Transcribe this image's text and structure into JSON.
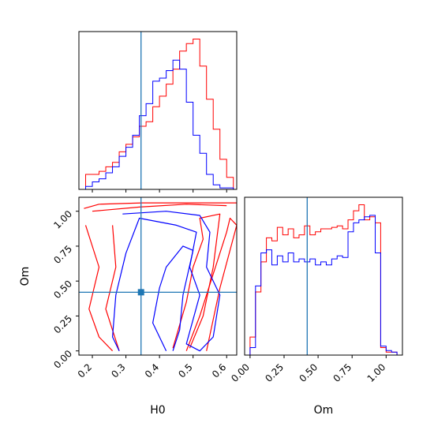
{
  "colors": {
    "series_red": "#ff0000",
    "series_blue": "#0000ff",
    "truth_line": "#1f77b4",
    "frame": "#000000",
    "background": "#ffffff"
  },
  "chart_data": [
    {
      "type": "histogram",
      "panel": "H0-marginal",
      "xlim": [
        0.16,
        0.63
      ],
      "ylim": [
        0,
        1.05
      ],
      "bin_edges": [
        0.18,
        0.2,
        0.22,
        0.24,
        0.26,
        0.28,
        0.3,
        0.32,
        0.34,
        0.36,
        0.38,
        0.4,
        0.42,
        0.44,
        0.46,
        0.48,
        0.5,
        0.52,
        0.54,
        0.56,
        0.58,
        0.6,
        0.62
      ],
      "series": [
        {
          "color": "red",
          "values": [
            0.1,
            0.1,
            0.12,
            0.15,
            0.18,
            0.25,
            0.3,
            0.35,
            0.42,
            0.45,
            0.55,
            0.62,
            0.7,
            0.8,
            0.92,
            0.97,
            1.0,
            0.82,
            0.6,
            0.4,
            0.2,
            0.08
          ]
        },
        {
          "color": "blue",
          "values": [
            0.02,
            0.05,
            0.07,
            0.11,
            0.15,
            0.22,
            0.28,
            0.36,
            0.49,
            0.57,
            0.72,
            0.74,
            0.79,
            0.86,
            0.8,
            0.58,
            0.36,
            0.24,
            0.1,
            0.03,
            0.01,
            0.01
          ]
        }
      ],
      "truth_x": 0.345
    },
    {
      "type": "contour",
      "panel": "H0-vs-Om",
      "xlabel": "H0",
      "ylabel": "Om",
      "xlim": [
        0.16,
        0.63
      ],
      "ylim": [
        -0.03,
        1.1
      ],
      "xticks": [
        "0.2",
        "0.3",
        "0.4",
        "0.5",
        "0.6"
      ],
      "yticks": [
        "0.00",
        "0.25",
        "0.50",
        "0.75",
        "1.00"
      ],
      "series": [
        {
          "color": "red",
          "levels": [
            [
              [
                0.175,
                1.02
              ],
              [
                0.22,
                1.05
              ],
              [
                0.35,
                1.06
              ],
              [
                0.5,
                1.06
              ],
              [
                0.63,
                1.06
              ]
            ],
            [
              [
                0.2,
                1.0
              ],
              [
                0.34,
                1.03
              ],
              [
                0.48,
                1.05
              ],
              [
                0.6,
                1.04
              ]
            ],
            [
              [
                0.18,
                0.9
              ],
              [
                0.22,
                0.6
              ],
              [
                0.19,
                0.3
              ],
              [
                0.22,
                0.1
              ],
              [
                0.26,
                0.0
              ]
            ],
            [
              [
                0.28,
                0.0
              ],
              [
                0.24,
                0.3
              ],
              [
                0.27,
                0.6
              ],
              [
                0.26,
                0.9
              ]
            ],
            [
              [
                0.44,
                0.02
              ],
              [
                0.48,
                0.35
              ],
              [
                0.5,
                0.6
              ],
              [
                0.53,
                0.8
              ],
              [
                0.52,
                0.95
              ],
              [
                0.58,
                0.98
              ],
              [
                0.56,
                0.6
              ],
              [
                0.53,
                0.25
              ],
              [
                0.49,
                0.02
              ]
            ],
            [
              [
                0.48,
                0.0
              ],
              [
                0.52,
                0.25
              ],
              [
                0.56,
                0.55
              ],
              [
                0.6,
                0.85
              ],
              [
                0.61,
                0.95
              ],
              [
                0.63,
                0.9
              ],
              [
                0.58,
                0.45
              ],
              [
                0.54,
                0.0
              ]
            ]
          ]
        },
        {
          "color": "blue",
          "levels": [
            [
              [
                0.29,
                0.98
              ],
              [
                0.42,
                1.0
              ],
              [
                0.52,
                0.97
              ],
              [
                0.55,
                0.85
              ],
              [
                0.54,
                0.6
              ],
              [
                0.58,
                0.4
              ],
              [
                0.56,
                0.1
              ],
              [
                0.52,
                0.0
              ],
              [
                0.48,
                0.05
              ],
              [
                0.52,
                0.4
              ],
              [
                0.49,
                0.6
              ],
              [
                0.51,
                0.85
              ],
              [
                0.45,
                0.9
              ],
              [
                0.34,
                0.95
              ],
              [
                0.3,
                0.7
              ],
              [
                0.27,
                0.4
              ],
              [
                0.26,
                0.1
              ],
              [
                0.28,
                0.0
              ]
            ],
            [
              [
                0.42,
                0.0
              ],
              [
                0.38,
                0.2
              ],
              [
                0.4,
                0.45
              ],
              [
                0.42,
                0.6
              ],
              [
                0.47,
                0.75
              ],
              [
                0.5,
                0.72
              ],
              [
                0.47,
                0.4
              ],
              [
                0.46,
                0.15
              ],
              [
                0.44,
                0.0
              ]
            ]
          ]
        }
      ],
      "truth_point": {
        "x": 0.345,
        "y": 0.42
      }
    },
    {
      "type": "histogram",
      "panel": "Om-marginal",
      "xlabel": "Om",
      "xlim": [
        -0.04,
        1.12
      ],
      "ylim": [
        0,
        1.05
      ],
      "xticks": [
        "0.00",
        "0.25",
        "0.50",
        "0.75",
        "1.00"
      ],
      "bin_edges": [
        0.0,
        0.04,
        0.08,
        0.12,
        0.16,
        0.2,
        0.24,
        0.28,
        0.32,
        0.36,
        0.4,
        0.44,
        0.48,
        0.52,
        0.56,
        0.6,
        0.64,
        0.68,
        0.72,
        0.76,
        0.8,
        0.84,
        0.88,
        0.92,
        0.96,
        1.0,
        1.04,
        1.08
      ],
      "series": [
        {
          "color": "red",
          "values": [
            0.12,
            0.42,
            0.62,
            0.78,
            0.76,
            0.85,
            0.8,
            0.84,
            0.78,
            0.8,
            0.86,
            0.8,
            0.82,
            0.84,
            0.84,
            0.85,
            0.86,
            0.84,
            0.9,
            0.96,
            1.0,
            0.9,
            0.92,
            0.88,
            0.05,
            0.02,
            0.02
          ]
        },
        {
          "color": "blue",
          "values": [
            0.05,
            0.46,
            0.68,
            0.7,
            0.6,
            0.66,
            0.62,
            0.68,
            0.62,
            0.64,
            0.62,
            0.64,
            0.6,
            0.62,
            0.6,
            0.64,
            0.66,
            0.65,
            0.82,
            0.88,
            0.9,
            0.92,
            0.93,
            0.68,
            0.06,
            0.03,
            0.02
          ]
        }
      ],
      "truth_x": 0.42
    }
  ]
}
